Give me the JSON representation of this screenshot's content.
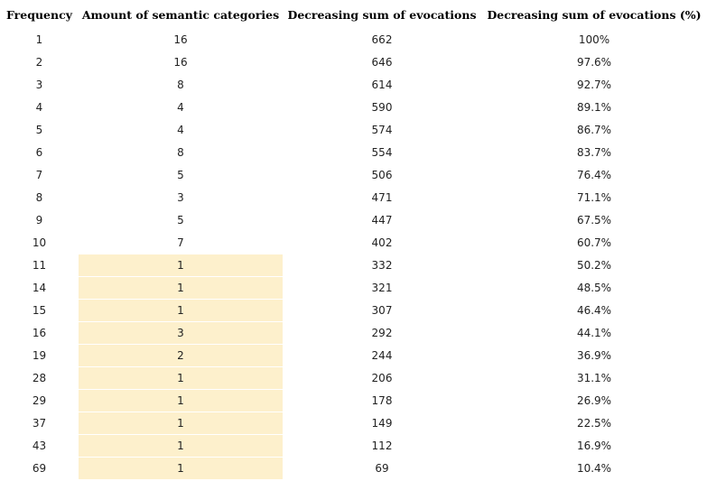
{
  "table": {
    "headers": [
      "Frequency",
      "Amount of semantic categories",
      "Decreasing sum of evocations",
      "Decreasing sum of evocations (%)"
    ],
    "rows": [
      [
        "1",
        "16",
        "662",
        "100%"
      ],
      [
        "2",
        "16",
        "646",
        "97.6%"
      ],
      [
        "3",
        "8",
        "614",
        "92.7%"
      ],
      [
        "4",
        "4",
        "590",
        "89.1%"
      ],
      [
        "5",
        "4",
        "574",
        "86.7%"
      ],
      [
        "6",
        "8",
        "554",
        "83.7%"
      ],
      [
        "7",
        "5",
        "506",
        "76.4%"
      ],
      [
        "8",
        "3",
        "471",
        "71.1%"
      ],
      [
        "9",
        "5",
        "447",
        "67.5%"
      ],
      [
        "10",
        "7",
        "402",
        "60.7%"
      ],
      [
        "11",
        "1",
        "332",
        "50.2%"
      ],
      [
        "14",
        "1",
        "321",
        "48.5%"
      ],
      [
        "15",
        "1",
        "307",
        "46.4%"
      ],
      [
        "16",
        "3",
        "292",
        "44.1%"
      ],
      [
        "19",
        "2",
        "244",
        "36.9%"
      ],
      [
        "28",
        "1",
        "206",
        "31.1%"
      ],
      [
        "29",
        "1",
        "178",
        "26.9%"
      ],
      [
        "37",
        "1",
        "149",
        "22.5%"
      ],
      [
        "43",
        "1",
        "112",
        "16.9%"
      ],
      [
        "69",
        "1",
        "69",
        "10.4%"
      ]
    ]
  }
}
